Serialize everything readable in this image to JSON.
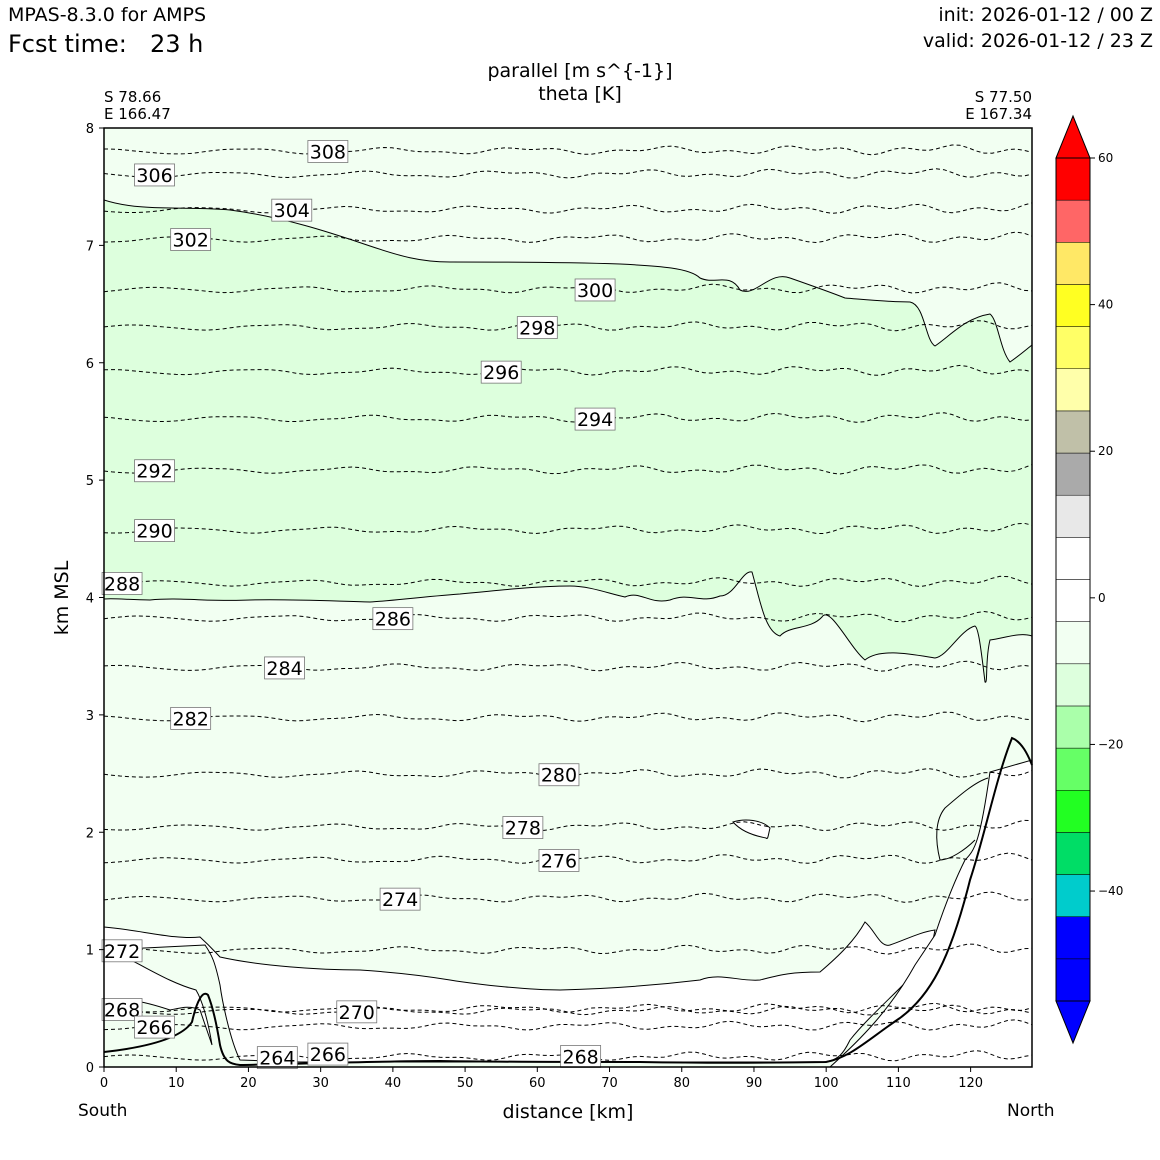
{
  "header": {
    "model": "MPAS-8.3.0 for AMPS",
    "fcst_label": "Fcst time:",
    "fcst_value": "23 h",
    "init": "init: 2026-01-12 / 00 Z",
    "valid": "valid: 2026-01-12 / 23 Z"
  },
  "chart_data": {
    "type": "cross-section contour",
    "title": [
      "parallel [m s^{-1}]",
      "theta [K]"
    ],
    "xlabel": "distance [km]",
    "ylabel": "km MSL",
    "xlim": [
      0,
      128.5
    ],
    "ylim": [
      0,
      8
    ],
    "xticks": [
      0,
      10,
      20,
      30,
      40,
      50,
      60,
      70,
      80,
      90,
      100,
      110,
      120
    ],
    "yticks": [
      0,
      1,
      2,
      3,
      4,
      5,
      6,
      7,
      8
    ],
    "left_end": {
      "direction": "South",
      "lat": "S 78.66",
      "lon": "E 166.47"
    },
    "right_end": {
      "direction": "North",
      "lat": "S 77.50",
      "lon": "E 167.34"
    },
    "colorbar": {
      "min": -55,
      "max": 60,
      "ticks": [
        -40,
        -20,
        0,
        20,
        40,
        60
      ],
      "colors": [
        "#0000ff",
        "#0000ff",
        "#00cccc",
        "#00dd66",
        "#22ff22",
        "#66ff66",
        "#aaffaa",
        "#ddffdd",
        "#f2fff2",
        "#ffffff",
        "#ffffff",
        "#e8e8e8",
        "#aaaaaa",
        "#c0c0a8",
        "#ffffaa",
        "#ffff66",
        "#ffff22",
        "#ffe866",
        "#ff6666",
        "#ff0000"
      ],
      "under_color": "#0000ff",
      "over_color": "#ff0000"
    },
    "theta_contours": [
      {
        "label": "308",
        "x": 31,
        "z": 7.8
      },
      {
        "label": "306",
        "x": 7,
        "z": 7.6
      },
      {
        "label": "304",
        "x": 26,
        "z": 7.3
      },
      {
        "label": "302",
        "x": 12,
        "z": 7.05
      },
      {
        "label": "300",
        "x": 68,
        "z": 6.62
      },
      {
        "label": "298",
        "x": 60,
        "z": 6.3
      },
      {
        "label": "296",
        "x": 55,
        "z": 5.92
      },
      {
        "label": "294",
        "x": 68,
        "z": 5.52
      },
      {
        "label": "292",
        "x": 7,
        "z": 5.08
      },
      {
        "label": "290",
        "x": 7,
        "z": 4.57
      },
      {
        "label": "288",
        "x": 2.5,
        "z": 4.12
      },
      {
        "label": "286",
        "x": 40,
        "z": 3.82
      },
      {
        "label": "284",
        "x": 25,
        "z": 3.4
      },
      {
        "label": "282",
        "x": 12,
        "z": 2.97
      },
      {
        "label": "280",
        "x": 63,
        "z": 2.49
      },
      {
        "label": "278",
        "x": 58,
        "z": 2.04
      },
      {
        "label": "276",
        "x": 63,
        "z": 1.76
      },
      {
        "label": "274",
        "x": 41,
        "z": 1.43
      },
      {
        "label": "272",
        "x": 2.5,
        "z": 0.99
      },
      {
        "label": "270",
        "x": 35,
        "z": 0.47
      },
      {
        "label": "268",
        "x": 2.5,
        "z": 0.49
      },
      {
        "label": "268",
        "x": 66,
        "z": 0.09
      },
      {
        "label": "266",
        "x": 7,
        "z": 0.34
      },
      {
        "label": "266",
        "x": 31,
        "z": 0.11
      },
      {
        "label": "264",
        "x": 24,
        "z": 0.08
      }
    ]
  }
}
